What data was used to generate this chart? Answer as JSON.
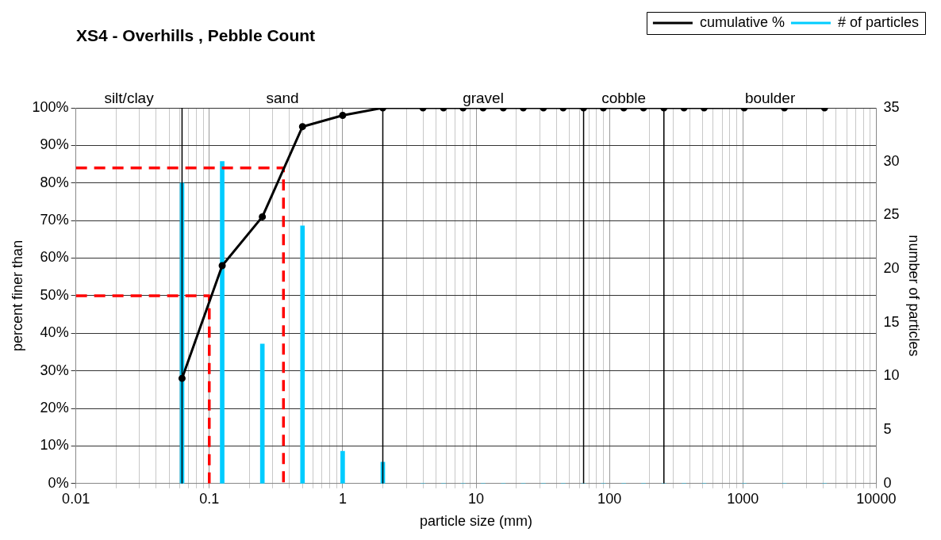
{
  "chart_data": {
    "type": "line",
    "title": "XS4 - Overhills , Pebble Count",
    "xlabel": "particle size (mm)",
    "ylabel": "percent finer than",
    "y2label": "number of particles",
    "log": "x",
    "grid": true,
    "legend": "top right",
    "xlim": [
      0.01,
      10000
    ],
    "xticks": [
      0.01,
      {
        "value": 0.02,
        "label": null
      },
      {
        "value": 0.03,
        "label": null
      },
      {
        "value": 0.04,
        "label": null
      },
      {
        "value": 0.05,
        "label": null
      },
      {
        "value": 0.06,
        "label": null
      },
      {
        "value": 0.07,
        "label": null
      },
      {
        "value": 0.08,
        "label": null
      },
      {
        "value": 0.09,
        "label": null
      },
      0.1,
      {
        "value": 0.2,
        "label": null
      },
      {
        "value": 0.3,
        "label": null
      },
      {
        "value": 0.4,
        "label": null
      },
      {
        "value": 0.5,
        "label": null
      },
      {
        "value": 0.6,
        "label": null
      },
      {
        "value": 0.7,
        "label": null
      },
      {
        "value": 0.8,
        "label": null
      },
      {
        "value": 0.9,
        "label": null
      },
      1,
      {
        "value": 2,
        "label": null
      },
      {
        "value": 3,
        "label": null
      },
      {
        "value": 4,
        "label": null
      },
      {
        "value": 5,
        "label": null
      },
      {
        "value": 6,
        "label": null
      },
      {
        "value": 7,
        "label": null
      },
      {
        "value": 8,
        "label": null
      },
      {
        "value": 9,
        "label": null
      },
      10,
      {
        "value": 20,
        "label": null
      },
      {
        "value": 30,
        "label": null
      },
      {
        "value": 40,
        "label": null
      },
      {
        "value": 50,
        "label": null
      },
      {
        "value": 60,
        "label": null
      },
      {
        "value": 70,
        "label": null
      },
      {
        "value": 80,
        "label": null
      },
      {
        "value": 90,
        "label": null
      },
      100,
      {
        "value": 200,
        "label": null
      },
      {
        "value": 300,
        "label": null
      },
      {
        "value": 400,
        "label": null
      },
      {
        "value": 500,
        "label": null
      },
      {
        "value": 600,
        "label": null
      },
      {
        "value": 700,
        "label": null
      },
      {
        "value": 800,
        "label": null
      },
      {
        "value": 900,
        "label": null
      },
      1000,
      {
        "value": 2000,
        "label": null
      },
      {
        "value": 3000,
        "label": null
      },
      {
        "value": 4000,
        "label": null
      },
      {
        "value": 5000,
        "label": null
      },
      {
        "value": 6000,
        "label": null
      },
      {
        "value": 7000,
        "label": null
      },
      {
        "value": 8000,
        "label": null
      },
      {
        "value": 9000,
        "label": null
      },
      10000
    ],
    "ylim": [
      0,
      100
    ],
    "yticks": [
      {
        "value": 0,
        "label": "0%"
      },
      {
        "value": 10,
        "label": "10%"
      },
      {
        "value": 20,
        "label": "20%"
      },
      {
        "value": 30,
        "label": "30%"
      },
      {
        "value": 40,
        "label": "40%"
      },
      {
        "value": 50,
        "label": "50%"
      },
      {
        "value": 60,
        "label": "60%"
      },
      {
        "value": 70,
        "label": "70%"
      },
      {
        "value": 80,
        "label": "80%"
      },
      {
        "value": 90,
        "label": "90%"
      },
      {
        "value": 100,
        "label": "100%"
      }
    ],
    "y2lim": [
      0,
      35
    ],
    "y2ticks": [
      0,
      5,
      10,
      15,
      20,
      25,
      30,
      35
    ],
    "x": [
      0.0625,
      0.125,
      0.25,
      0.5,
      1,
      2,
      4,
      5.7,
      8,
      11.3,
      16,
      22.6,
      32,
      45,
      64,
      90,
      128,
      180,
      256,
      362,
      512,
      1024,
      2048,
      4096
    ],
    "series": [
      {
        "name": "# of particles",
        "type": "bar",
        "axis": "y2",
        "color": "#00ccff",
        "values": [
          28,
          30,
          13,
          24,
          3,
          2,
          0,
          0,
          0,
          0,
          0,
          0,
          0,
          0,
          0,
          0,
          0,
          0,
          0,
          0,
          0,
          0,
          0,
          0
        ]
      },
      {
        "name": "cumulative %",
        "color": "#000000",
        "marker": "circle",
        "values": [
          28,
          58,
          71,
          95,
          98,
          100,
          100,
          100,
          100,
          100,
          100,
          100,
          100,
          100,
          100,
          100,
          100,
          100,
          100,
          100,
          100,
          100,
          100,
          100
        ]
      },
      {
        "color": "#ff0000",
        "line_style": "dashed",
        "marker": "none",
        "x": [
          0.01,
          0.1,
          0.1
        ],
        "values": [
          50,
          50,
          0
        ]
      },
      {
        "color": "#ff0000",
        "line_style": "dashed",
        "marker": "none",
        "x": [
          0.01,
          0.36,
          0.36
        ],
        "values": [
          84,
          84,
          0
        ]
      },
      {
        "color": "#000000",
        "marker": "none",
        "x": [
          0.0625,
          0.0625
        ],
        "values": [
          100,
          0
        ]
      },
      {
        "color": "#000000",
        "marker": "none",
        "x": [
          2,
          2
        ],
        "values": [
          100,
          0
        ]
      },
      {
        "color": "#000000",
        "marker": "none",
        "x": [
          64,
          64
        ],
        "values": [
          100,
          0
        ]
      },
      {
        "color": "#000000",
        "marker": "none",
        "x": [
          256,
          256
        ],
        "values": [
          100,
          0
        ]
      }
    ],
    "annotations": [
      "silt/clay",
      "sand",
      "gravel",
      "cobble",
      "boulder"
    ]
  }
}
